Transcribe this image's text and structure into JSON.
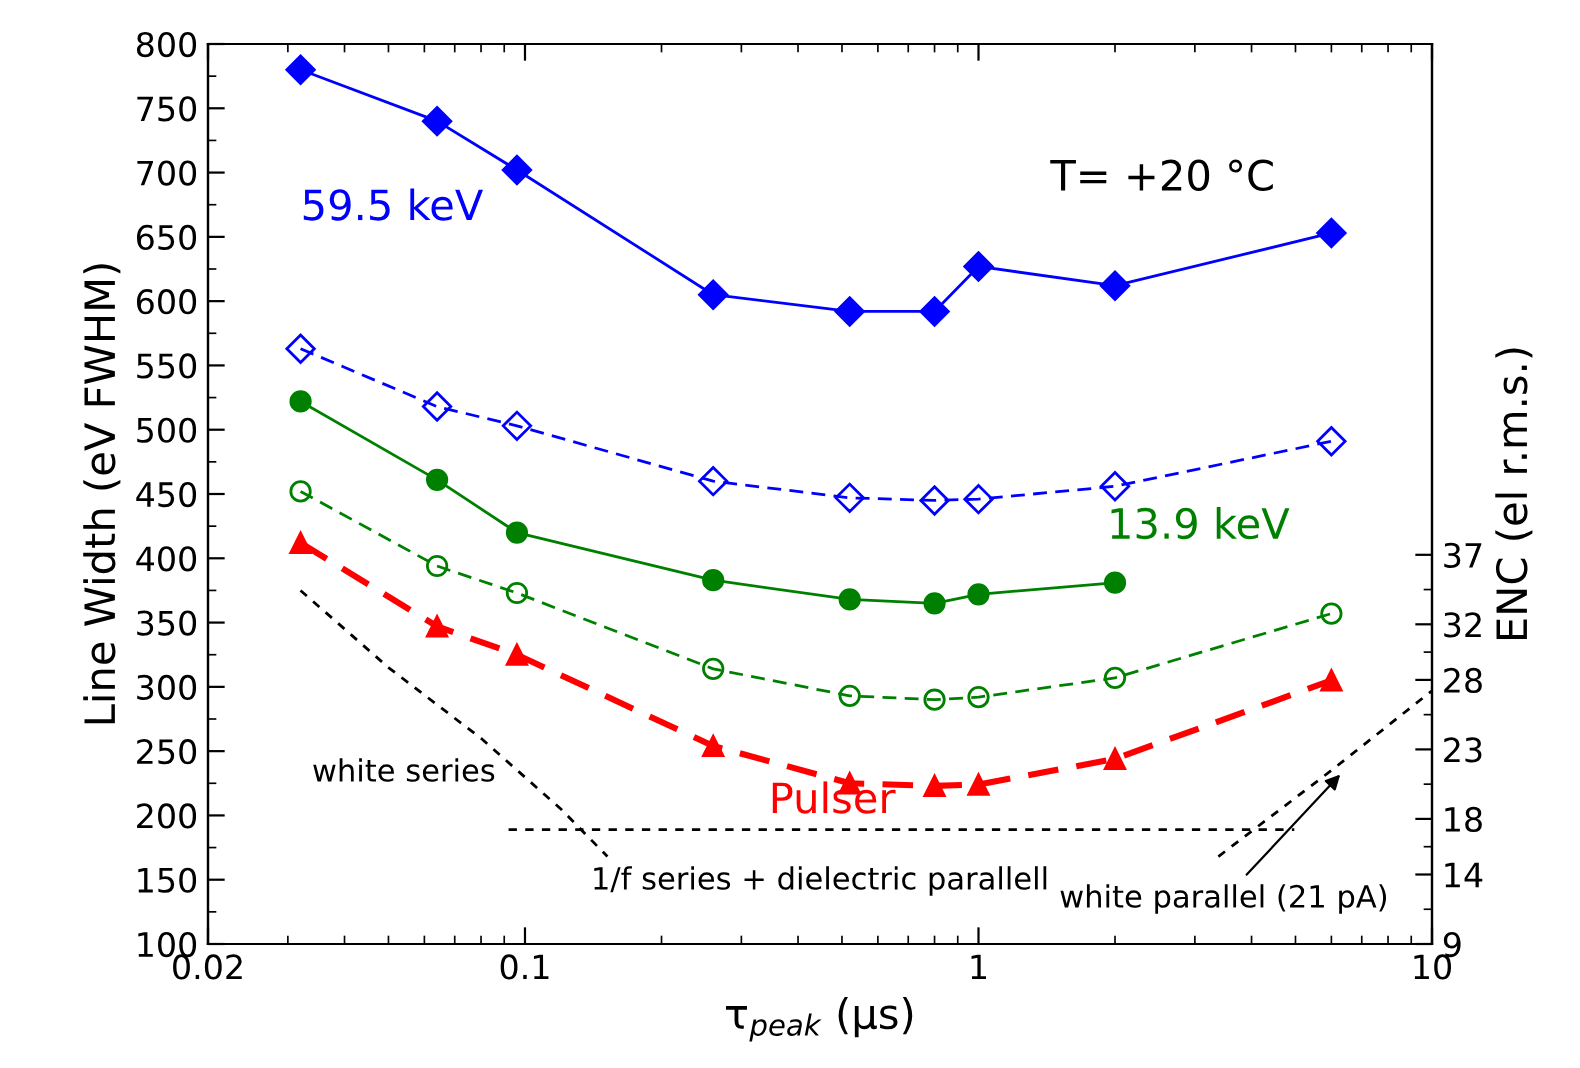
{
  "chart_data": {
    "type": "line",
    "xlabel": "τ$_{peak}$ (μs)",
    "ylabel": "Line Width (eV FWHM)",
    "y2label": "ENC (el r.m.s.)",
    "log": "x",
    "xlim": [
      0.02,
      10
    ],
    "xticks": [
      0.02,
      0.1,
      1,
      10
    ],
    "ylim": [
      100,
      800
    ],
    "yticks": [
      100,
      150,
      200,
      250,
      300,
      350,
      400,
      450,
      500,
      550,
      600,
      650,
      700,
      750,
      800
    ],
    "y2lim": [
      9,
      73.75
    ],
    "y2ticks": [
      9,
      14,
      18,
      23,
      28,
      32,
      37
    ],
    "grid": false,
    "x": [
      0.032,
      0.064,
      0.096,
      0.26,
      0.52,
      0.8,
      1.0,
      2.0,
      6.0
    ],
    "series": [
      {
        "name": "59.5 keV",
        "color": "#0000ff",
        "marker": "diamond",
        "line_style": "solid",
        "values": [
          780,
          740,
          702,
          605,
          592,
          592,
          627,
          612,
          653
        ]
      },
      {
        "color": "#0000ff",
        "marker": "diamond",
        "line_style": "dashed",
        "values": [
          563,
          518,
          503,
          460,
          447,
          445,
          446,
          456,
          491
        ]
      },
      {
        "name": "13.9 keV",
        "color": "#008000",
        "marker": "circle",
        "line_style": "solid",
        "x": [
          0.032,
          0.064,
          0.096,
          0.26,
          0.52,
          0.8,
          1.0,
          2.0
        ],
        "values": [
          522,
          461,
          420,
          383,
          368,
          365,
          372,
          381
        ]
      },
      {
        "color": "#008000",
        "marker": "circle",
        "line_style": "dashed",
        "values": [
          452,
          394,
          373,
          314,
          293,
          290,
          292,
          307,
          357
        ]
      },
      {
        "name": "Pulser",
        "color": "#ff0000",
        "marker": "triangle",
        "line_style": "dashed",
        "values": [
          412,
          347,
          325,
          254,
          225,
          223,
          224,
          244,
          305
        ]
      },
      {
        "color": "#000000",
        "marker": "none",
        "line_style": "dotted",
        "x": [
          0.032,
          0.05,
          0.08,
          0.12,
          0.152
        ],
        "values": [
          375,
          315,
          260,
          205,
          168
        ]
      },
      {
        "color": "#000000",
        "marker": "none",
        "line_style": "dotted",
        "x": [
          0.092,
          4.97
        ],
        "values": [
          189,
          189
        ]
      },
      {
        "color": "#000000",
        "marker": "none",
        "line_style": "dotted",
        "x": [
          3.38,
          6.0,
          10.0
        ],
        "values": [
          168,
          235,
          297
        ]
      }
    ],
    "annotations": [
      "T= +20 °C",
      "white series",
      "1/f series + dielectric parallell",
      {
        "text": "white parallel (21 pA)",
        "x": 6.4,
        "y": 235
      }
    ]
  }
}
